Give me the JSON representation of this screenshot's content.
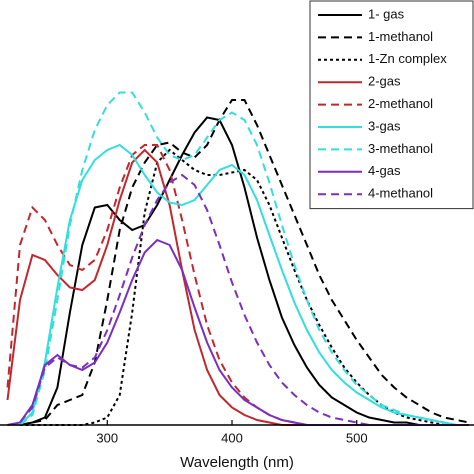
{
  "chart_data": {
    "type": "line",
    "x_label": "Wavelength (nm)",
    "x": [
      220,
      230,
      240,
      250,
      260,
      270,
      280,
      290,
      300,
      310,
      320,
      330,
      340,
      350,
      360,
      370,
      380,
      390,
      400,
      410,
      420,
      430,
      440,
      450,
      460,
      470,
      480,
      490,
      500,
      510,
      520,
      530,
      540,
      550,
      560,
      570,
      580,
      590
    ],
    "xlim": [
      214,
      594
    ],
    "xticks": [
      300,
      400,
      500
    ],
    "ylim": [
      0,
      1.7
    ],
    "legend": "upper right",
    "series": [
      {
        "name": "1- gas",
        "color": "#000000",
        "dash": "solid",
        "values": [
          0,
          0,
          0.01,
          0.03,
          0.15,
          0.45,
          0.72,
          0.87,
          0.88,
          0.82,
          0.78,
          0.8,
          0.88,
          0.98,
          1.08,
          1.17,
          1.23,
          1.22,
          1.12,
          0.95,
          0.75,
          0.58,
          0.43,
          0.32,
          0.23,
          0.16,
          0.11,
          0.08,
          0.05,
          0.03,
          0.02,
          0.01,
          0.01,
          0,
          0,
          0,
          0,
          0
        ]
      },
      {
        "name": "1-methanol",
        "color": "#000000",
        "dash": "dashed",
        "values": [
          0,
          0,
          0.01,
          0.02,
          0.08,
          0.1,
          0.12,
          0.25,
          0.5,
          0.78,
          0.95,
          1.05,
          1.12,
          1.13,
          1.09,
          1.07,
          1.12,
          1.22,
          1.3,
          1.3,
          1.2,
          1.08,
          0.96,
          0.84,
          0.72,
          0.6,
          0.5,
          0.42,
          0.34,
          0.27,
          0.2,
          0.15,
          0.11,
          0.08,
          0.05,
          0.03,
          0.02,
          0.01
        ]
      },
      {
        "name": "1-Zn complex",
        "color": "#000000",
        "dash": "dotted",
        "values": [
          0,
          0,
          0,
          0,
          0,
          0,
          0,
          0.01,
          0.03,
          0.12,
          0.45,
          0.85,
          1.05,
          1.1,
          1.06,
          1.02,
          1.0,
          1.0,
          1.01,
          1.02,
          0.98,
          0.88,
          0.75,
          0.62,
          0.5,
          0.4,
          0.31,
          0.23,
          0.17,
          0.12,
          0.08,
          0.05,
          0.03,
          0.02,
          0.01,
          0,
          0,
          0
        ]
      },
      {
        "name": "2-gas",
        "color": "#c0282d",
        "dash": "solid",
        "values": [
          0.1,
          0.5,
          0.68,
          0.66,
          0.6,
          0.55,
          0.54,
          0.58,
          0.72,
          0.9,
          1.05,
          1.1,
          1.05,
          0.88,
          0.62,
          0.38,
          0.22,
          0.12,
          0.07,
          0.04,
          0.02,
          0.01,
          0,
          0,
          0,
          0,
          0,
          0,
          0,
          0,
          0,
          0,
          0,
          0,
          0,
          0,
          0,
          0
        ]
      },
      {
        "name": "2-methanol",
        "color": "#c0282d",
        "dash": "dashed",
        "values": [
          0.15,
          0.72,
          0.87,
          0.82,
          0.72,
          0.64,
          0.62,
          0.66,
          0.78,
          0.95,
          1.08,
          1.12,
          1.12,
          1.02,
          0.82,
          0.6,
          0.4,
          0.26,
          0.17,
          0.11,
          0.07,
          0.04,
          0.02,
          0.01,
          0,
          0,
          0,
          0,
          0,
          0,
          0,
          0,
          0,
          0,
          0,
          0,
          0,
          0
        ]
      },
      {
        "name": "3-gas",
        "color": "#33dede",
        "dash": "solid",
        "values": [
          0,
          0,
          0.05,
          0.25,
          0.55,
          0.82,
          0.98,
          1.06,
          1.1,
          1.12,
          1.08,
          1.0,
          0.93,
          0.89,
          0.88,
          0.9,
          0.96,
          1.02,
          1.04,
          1.0,
          0.9,
          0.76,
          0.62,
          0.49,
          0.38,
          0.29,
          0.22,
          0.17,
          0.13,
          0.1,
          0.07,
          0.05,
          0.04,
          0.03,
          0.02,
          0.01,
          0,
          0
        ]
      },
      {
        "name": "3-methanol",
        "color": "#33dede",
        "dash": "dashed",
        "values": [
          0,
          0,
          0.04,
          0.22,
          0.5,
          0.8,
          1.02,
          1.18,
          1.28,
          1.33,
          1.33,
          1.25,
          1.15,
          1.08,
          1.06,
          1.08,
          1.15,
          1.22,
          1.25,
          1.22,
          1.12,
          0.97,
          0.8,
          0.64,
          0.5,
          0.38,
          0.29,
          0.22,
          0.16,
          0.12,
          0.08,
          0.06,
          0.04,
          0.03,
          0.02,
          0.01,
          0,
          0
        ]
      },
      {
        "name": "4-gas",
        "color": "#7b2fbe",
        "dash": "solid",
        "values": [
          0,
          0.01,
          0.08,
          0.24,
          0.28,
          0.24,
          0.22,
          0.25,
          0.33,
          0.45,
          0.58,
          0.69,
          0.74,
          0.72,
          0.62,
          0.47,
          0.33,
          0.22,
          0.15,
          0.1,
          0.07,
          0.04,
          0.02,
          0.01,
          0,
          0,
          0,
          0,
          0,
          0,
          0,
          0,
          0,
          0,
          0,
          0,
          0,
          0
        ]
      },
      {
        "name": "4-methanol",
        "color": "#7b2fbe",
        "dash": "dashed",
        "values": [
          0,
          0.01,
          0.07,
          0.23,
          0.27,
          0.24,
          0.23,
          0.27,
          0.38,
          0.52,
          0.67,
          0.8,
          0.9,
          0.97,
          1.0,
          0.96,
          0.86,
          0.72,
          0.57,
          0.44,
          0.33,
          0.24,
          0.17,
          0.12,
          0.08,
          0.05,
          0.03,
          0.02,
          0.01,
          0,
          0,
          0,
          0,
          0,
          0,
          0,
          0,
          0
        ]
      }
    ]
  }
}
